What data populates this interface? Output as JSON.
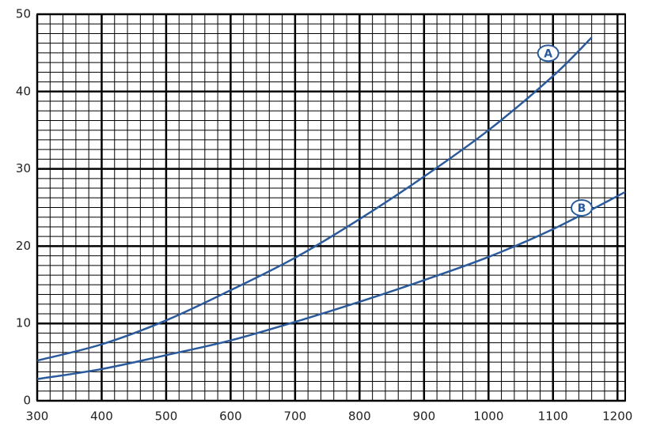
{
  "chart_data": {
    "type": "line",
    "xlim": [
      300,
      1212
    ],
    "ylim": [
      0,
      50
    ],
    "xticks": [
      300,
      400,
      500,
      600,
      700,
      800,
      900,
      1000,
      1100,
      1200
    ],
    "yticks": [
      0,
      10,
      20,
      30,
      40,
      50
    ],
    "grid": true,
    "minor_grid": {
      "x_step": 20,
      "y_step": 1.25
    },
    "series": [
      {
        "name": "A",
        "color": "#2a5a9c",
        "x": [
          300,
          400,
          500,
          600,
          700,
          800,
          900,
          1000,
          1100,
          1160
        ],
        "values": [
          5.2,
          7.3,
          10.4,
          14.3,
          18.5,
          23.5,
          29,
          35,
          42,
          47
        ]
      },
      {
        "name": "B",
        "color": "#2a5a9c",
        "x": [
          300,
          400,
          500,
          600,
          700,
          800,
          900,
          1000,
          1100,
          1212
        ],
        "values": [
          2.8,
          4.1,
          5.9,
          7.8,
          10.2,
          12.8,
          15.6,
          18.6,
          22.2,
          27
        ]
      }
    ]
  }
}
